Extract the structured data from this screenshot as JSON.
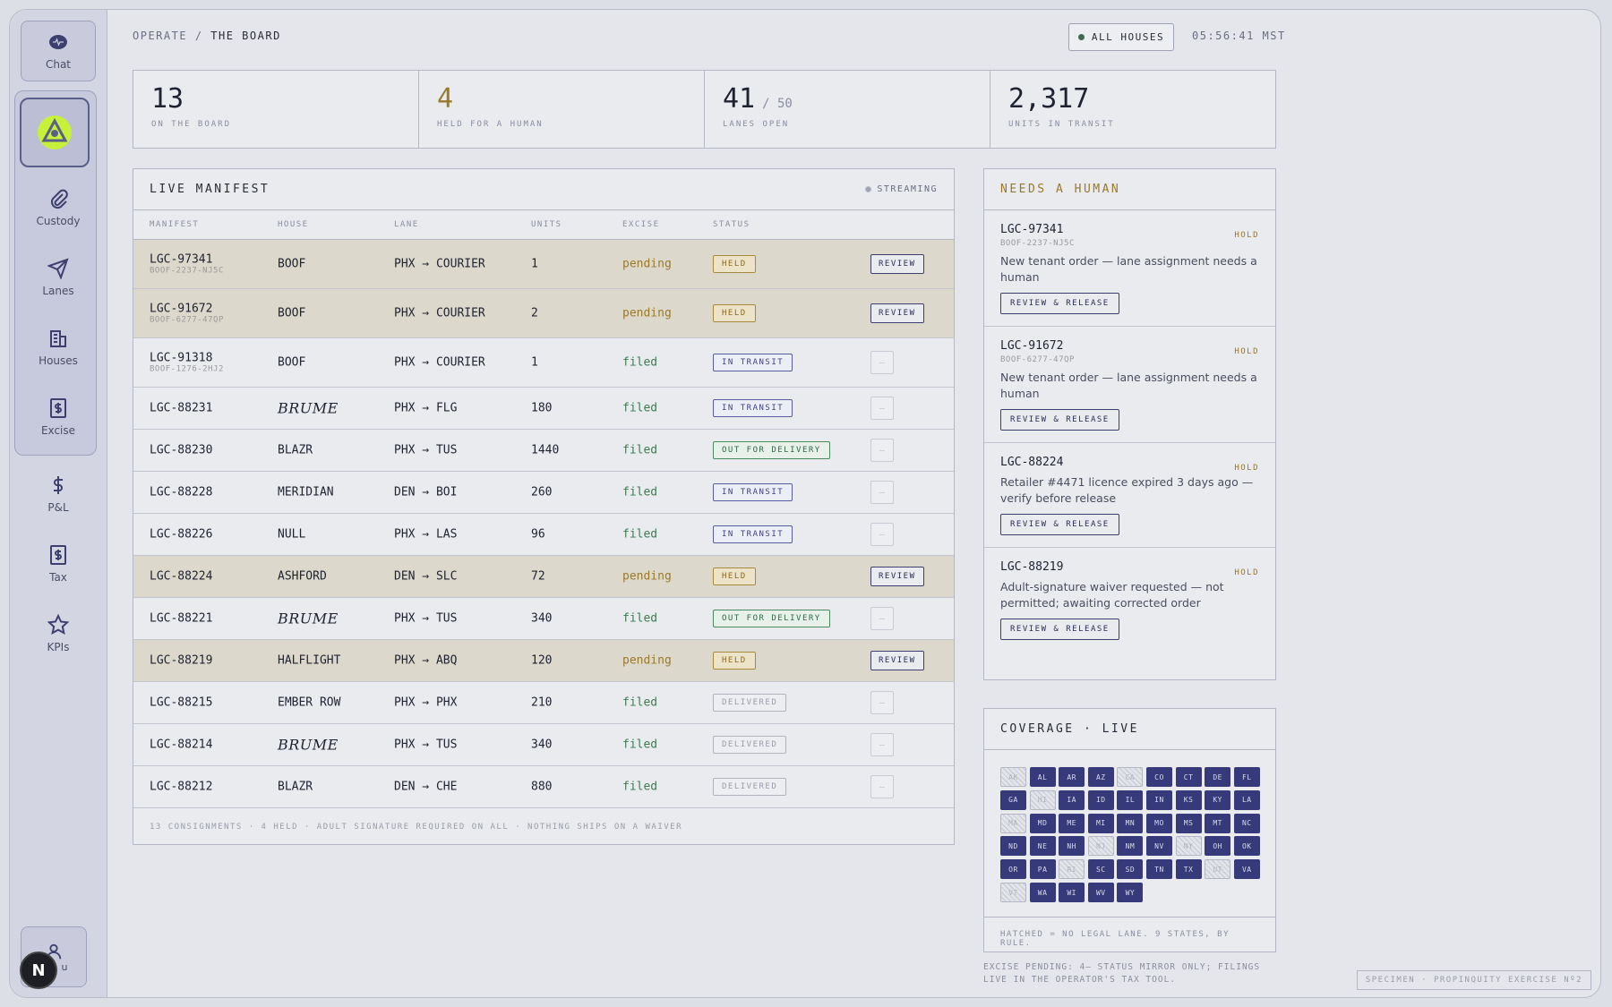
{
  "sidebar": {
    "items": [
      {
        "label": "Chat",
        "icon": "chat-icon"
      },
      {
        "label": "Custody",
        "icon": "paperclip-icon"
      },
      {
        "label": "Lanes",
        "icon": "send-icon"
      },
      {
        "label": "Houses",
        "icon": "buildings-icon"
      },
      {
        "label": "Excise",
        "icon": "dollar-doc-icon"
      },
      {
        "label": "P&L",
        "icon": "dollar-icon"
      },
      {
        "label": "Tax",
        "icon": "dollar-doc-icon"
      },
      {
        "label": "KPIs",
        "icon": "star-icon"
      }
    ],
    "user_label": "u",
    "badge": "N"
  },
  "header": {
    "section": "OPERATE",
    "separator": "/",
    "page": "THE BOARD",
    "filter_label": "ALL HOUSES",
    "clock": "05:56:41 MST"
  },
  "kpis": [
    {
      "value": "13",
      "sub": "",
      "label": "ON THE BOARD"
    },
    {
      "value": "4",
      "sub": "",
      "label": "HELD FOR A HUMAN"
    },
    {
      "value": "41",
      "sub": "/ 50",
      "label": "LANES OPEN"
    },
    {
      "value": "2,317",
      "sub": "",
      "label": "UNITS IN TRANSIT"
    }
  ],
  "manifest": {
    "title": "LIVE MANIFEST",
    "streaming": "STREAMING",
    "columns": [
      "MANIFEST",
      "HOUSE",
      "LANE",
      "UNITS",
      "EXCISE",
      "STATUS"
    ],
    "review_label": "REVIEW",
    "ghost_label": "—",
    "rows": [
      {
        "id": "LGC-97341",
        "sub": "BOOF-2237-NJ5C",
        "house": "BOOF",
        "brume": false,
        "lane": "PHX → COURIER",
        "units": "1",
        "excise": "pending",
        "status": "HELD",
        "kind": "held"
      },
      {
        "id": "LGC-91672",
        "sub": "BOOF-6277-47QP",
        "house": "BOOF",
        "brume": false,
        "lane": "PHX → COURIER",
        "units": "2",
        "excise": "pending",
        "status": "HELD",
        "kind": "held"
      },
      {
        "id": "LGC-91318",
        "sub": "BOOF-1276-2HJ2",
        "house": "BOOF",
        "brume": false,
        "lane": "PHX → COURIER",
        "units": "1",
        "excise": "filed",
        "status": "IN TRANSIT",
        "kind": "transit"
      },
      {
        "id": "LGC-88231",
        "sub": "",
        "house": "BRUME",
        "brume": true,
        "lane": "PHX → FLG",
        "units": "180",
        "excise": "filed",
        "status": "IN TRANSIT",
        "kind": "transit"
      },
      {
        "id": "LGC-88230",
        "sub": "",
        "house": "BLAZR",
        "brume": false,
        "lane": "PHX → TUS",
        "units": "1440",
        "excise": "filed",
        "status": "OUT FOR DELIVERY",
        "kind": "ofd"
      },
      {
        "id": "LGC-88228",
        "sub": "",
        "house": "MERIDIAN",
        "brume": false,
        "lane": "DEN → BOI",
        "units": "260",
        "excise": "filed",
        "status": "IN TRANSIT",
        "kind": "transit"
      },
      {
        "id": "LGC-88226",
        "sub": "",
        "house": "NULL",
        "brume": false,
        "lane": "PHX → LAS",
        "units": "96",
        "excise": "filed",
        "status": "IN TRANSIT",
        "kind": "transit"
      },
      {
        "id": "LGC-88224",
        "sub": "",
        "house": "ASHFORD",
        "brume": false,
        "lane": "DEN → SLC",
        "units": "72",
        "excise": "pending",
        "status": "HELD",
        "kind": "held"
      },
      {
        "id": "LGC-88221",
        "sub": "",
        "house": "BRUME",
        "brume": true,
        "lane": "PHX → TUS",
        "units": "340",
        "excise": "filed",
        "status": "OUT FOR DELIVERY",
        "kind": "ofd"
      },
      {
        "id": "LGC-88219",
        "sub": "",
        "house": "HALFLIGHT",
        "brume": false,
        "lane": "PHX → ABQ",
        "units": "120",
        "excise": "pending",
        "status": "HELD",
        "kind": "held"
      },
      {
        "id": "LGC-88215",
        "sub": "",
        "house": "EMBER ROW",
        "brume": false,
        "lane": "PHX → PHX",
        "units": "210",
        "excise": "filed",
        "status": "DELIVERED",
        "kind": "deliv"
      },
      {
        "id": "LGC-88214",
        "sub": "",
        "house": "BRUME",
        "brume": true,
        "lane": "PHX → TUS",
        "units": "340",
        "excise": "filed",
        "status": "DELIVERED",
        "kind": "deliv"
      },
      {
        "id": "LGC-88212",
        "sub": "",
        "house": "BLAZR",
        "brume": false,
        "lane": "DEN → CHE",
        "units": "880",
        "excise": "filed",
        "status": "DELIVERED",
        "kind": "deliv"
      }
    ],
    "footer": "13 CONSIGNMENTS · 4 HELD · ADULT SIGNATURE REQUIRED ON ALL · NOTHING SHIPS ON A WAIVER"
  },
  "needs": {
    "title": "NEEDS A HUMAN",
    "tag": "HOLD",
    "button": "REVIEW & RELEASE",
    "cards": [
      {
        "id": "LGC-97341",
        "sub": "BOOF-2237-NJ5C",
        "msg": "New tenant order — lane assignment needs a human"
      },
      {
        "id": "LGC-91672",
        "sub": "BOOF-6277-47QP",
        "msg": "New tenant order — lane assignment needs a human"
      },
      {
        "id": "LGC-88224",
        "sub": "",
        "msg": "Retailer #4471 licence expired 3 days ago — verify before release"
      },
      {
        "id": "LGC-88219",
        "sub": "",
        "msg": "Adult-signature waiver requested — not permitted; awaiting corrected order"
      }
    ]
  },
  "coverage": {
    "title": "COVERAGE · LIVE",
    "states": [
      {
        "c": "AK",
        "on": false
      },
      {
        "c": "AL",
        "on": true
      },
      {
        "c": "AR",
        "on": true
      },
      {
        "c": "AZ",
        "on": true
      },
      {
        "c": "CA",
        "on": false
      },
      {
        "c": "CO",
        "on": true
      },
      {
        "c": "CT",
        "on": true
      },
      {
        "c": "DE",
        "on": true
      },
      {
        "c": "FL",
        "on": true
      },
      {
        "c": "GA",
        "on": true
      },
      {
        "c": "HI",
        "on": false
      },
      {
        "c": "IA",
        "on": true
      },
      {
        "c": "ID",
        "on": true
      },
      {
        "c": "IL",
        "on": true
      },
      {
        "c": "IN",
        "on": true
      },
      {
        "c": "KS",
        "on": true
      },
      {
        "c": "KY",
        "on": true
      },
      {
        "c": "LA",
        "on": true
      },
      {
        "c": "MA",
        "on": false
      },
      {
        "c": "MD",
        "on": true
      },
      {
        "c": "ME",
        "on": true
      },
      {
        "c": "MI",
        "on": true
      },
      {
        "c": "MN",
        "on": true
      },
      {
        "c": "MO",
        "on": true
      },
      {
        "c": "MS",
        "on": true
      },
      {
        "c": "MT",
        "on": true
      },
      {
        "c": "NC",
        "on": true
      },
      {
        "c": "ND",
        "on": true
      },
      {
        "c": "NE",
        "on": true
      },
      {
        "c": "NH",
        "on": true
      },
      {
        "c": "NJ",
        "on": false
      },
      {
        "c": "NM",
        "on": true
      },
      {
        "c": "NV",
        "on": true
      },
      {
        "c": "NY",
        "on": false
      },
      {
        "c": "OH",
        "on": true
      },
      {
        "c": "OK",
        "on": true
      },
      {
        "c": "OR",
        "on": true
      },
      {
        "c": "PA",
        "on": true
      },
      {
        "c": "RI",
        "on": false
      },
      {
        "c": "SC",
        "on": true
      },
      {
        "c": "SD",
        "on": true
      },
      {
        "c": "TN",
        "on": true
      },
      {
        "c": "TX",
        "on": true
      },
      {
        "c": "UT",
        "on": false
      },
      {
        "c": "VA",
        "on": true
      },
      {
        "c": "VT",
        "on": false
      },
      {
        "c": "WA",
        "on": true
      },
      {
        "c": "WI",
        "on": true
      },
      {
        "c": "WV",
        "on": true
      },
      {
        "c": "WY",
        "on": true
      }
    ],
    "footer": "HATCHED = NO LEGAL LANE. 9 STATES, BY RULE."
  },
  "excise_note": "EXCISE PENDING: 4— STATUS MIRROR ONLY; FILINGS LIVE IN THE OPERATOR'S TAX TOOL.",
  "specimen": "SPECIMEN · PROPINQUITY EXERCISE Nº2",
  "colors": {
    "accent": "#363a7a",
    "held": "#9a7a2a",
    "filed": "#3e7a52",
    "brand": "#c6f03a"
  }
}
